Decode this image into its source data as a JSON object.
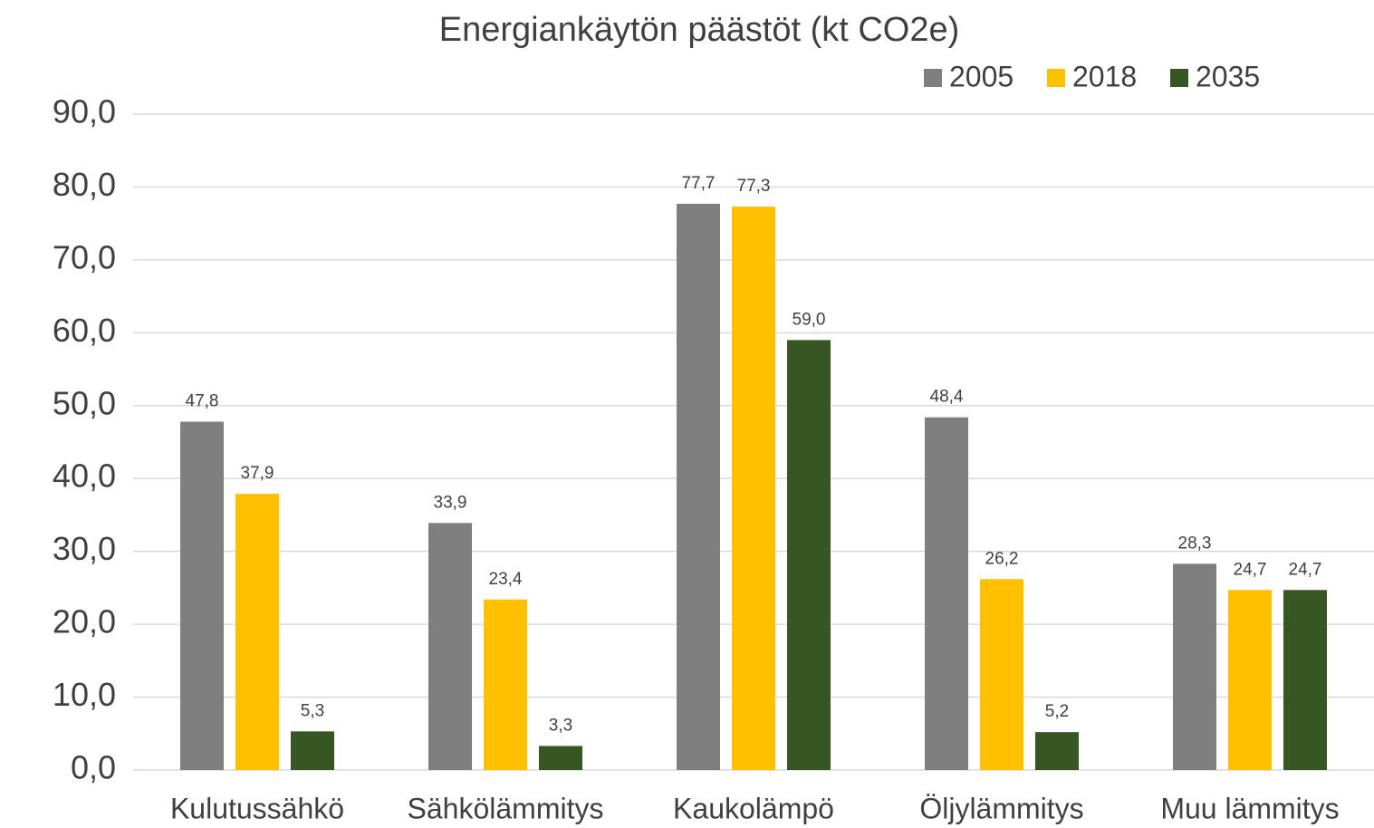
{
  "chart_data": {
    "type": "bar",
    "title": "Energiankäytön päästöt (kt CO2e)",
    "categories": [
      "Kulutussähkö",
      "Sähkölämmitys",
      "Kaukolämpö",
      "Öljylämmitys",
      "Muu lämmitys"
    ],
    "series": [
      {
        "name": "2005",
        "color": "#7f7f7f",
        "values": [
          47.8,
          33.9,
          77.7,
          48.4,
          28.3
        ],
        "value_labels": [
          "47,8",
          "33,9",
          "77,7",
          "48,4",
          "28,3"
        ]
      },
      {
        "name": "2018",
        "color": "#ffc000",
        "values": [
          37.9,
          23.4,
          77.3,
          26.2,
          24.7
        ],
        "value_labels": [
          "37,9",
          "23,4",
          "77,3",
          "26,2",
          "24,7"
        ]
      },
      {
        "name": "2035",
        "color": "#375623",
        "values": [
          5.3,
          3.3,
          59.0,
          5.2,
          24.7
        ],
        "value_labels": [
          "5,3",
          "3,3",
          "59,0",
          "5,2",
          "24,7"
        ]
      }
    ],
    "ylim": [
      0,
      90
    ],
    "yticks": [
      {
        "value": 0,
        "label": "0,0"
      },
      {
        "value": 10,
        "label": "10,0"
      },
      {
        "value": 20,
        "label": "20,0"
      },
      {
        "value": 30,
        "label": "30,0"
      },
      {
        "value": 40,
        "label": "40,0"
      },
      {
        "value": 50,
        "label": "50,0"
      },
      {
        "value": 60,
        "label": "60,0"
      },
      {
        "value": 70,
        "label": "70,0"
      },
      {
        "value": 80,
        "label": "80,0"
      },
      {
        "value": 90,
        "label": "90,0"
      }
    ],
    "grid": true,
    "legend": "top-right"
  }
}
